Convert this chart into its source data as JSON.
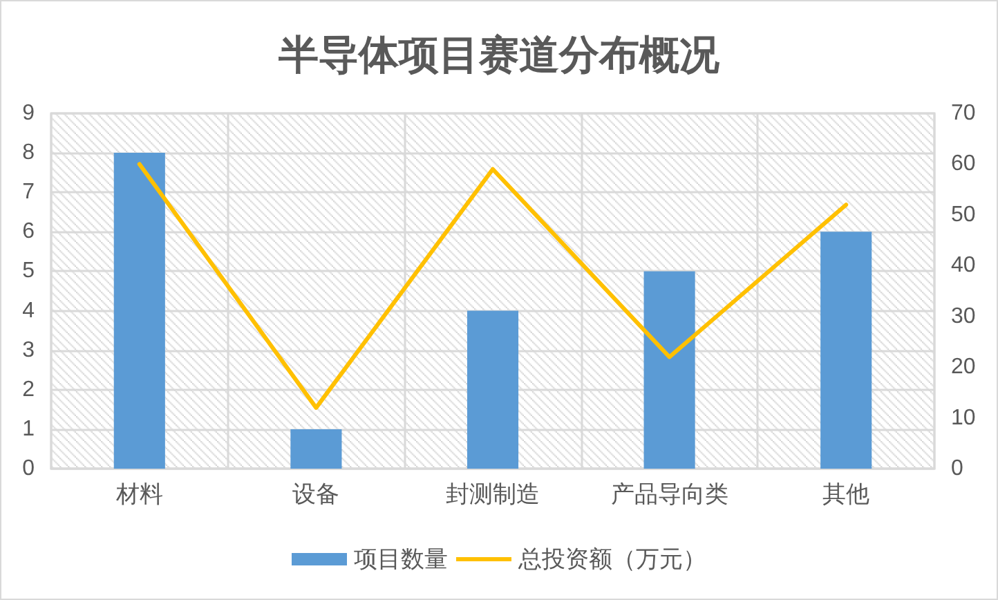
{
  "chart_data": {
    "type": "bar",
    "title": "半导体项目赛道分布概况",
    "categories": [
      "材料",
      "设备",
      "封测制造",
      "产品导向类",
      "其他"
    ],
    "series": [
      {
        "name": "项目数量",
        "color": "#5b9bd5",
        "values": [
          8,
          1,
          4,
          5,
          6
        ]
      },
      {
        "name": "总投资额（万元）",
        "type": "line",
        "axis": "y2",
        "color": "#ffc000",
        "values": [
          60,
          12,
          59,
          22,
          52
        ]
      }
    ],
    "ylim": [
      0,
      9
    ],
    "yticks": [
      0,
      1,
      2,
      3,
      4,
      5,
      6,
      7,
      8,
      9
    ],
    "y2lim": [
      0,
      70
    ],
    "y2ticks": [
      0,
      10,
      20,
      30,
      40,
      50,
      60,
      70
    ],
    "grid": true,
    "legend": "bottom",
    "marker": "none",
    "line_style": "solid"
  }
}
